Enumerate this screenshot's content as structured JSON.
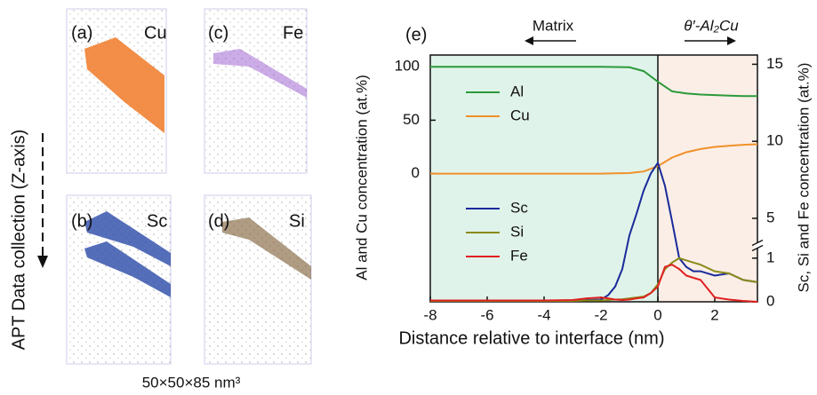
{
  "apt": {
    "axis_label": "APT Data collection (Z-axis)",
    "size_label": "50×50×85 nm³",
    "panels": [
      {
        "label": "(a)",
        "element": "Cu",
        "color": "#f07a28"
      },
      {
        "label": "(b)",
        "element": "Sc",
        "color": "#2a4aa8"
      },
      {
        "label": "(c)",
        "element": "Fe",
        "color": "#9a5ad0"
      },
      {
        "label": "(d)",
        "element": "Si",
        "color": "#7a5a30"
      }
    ]
  },
  "chart_data": {
    "type": "line",
    "panel_label": "(e)",
    "xlabel": "Distance relative to interface (nm)",
    "ylabel": "Al and Cu concentration (at.%)",
    "y2label": "Sc, Si and Fe concentration (at.%)",
    "xlim": [
      -8,
      3.5
    ],
    "xticks": [
      -8,
      -6,
      -4,
      -2,
      0,
      2
    ],
    "ylim": [
      -120,
      111
    ],
    "yticks": [
      0,
      50,
      100
    ],
    "y2lim": [
      0,
      15.6
    ],
    "y2_break": [
      1.2,
      3.5
    ],
    "y2ticks": [
      0,
      1,
      5,
      10,
      15
    ],
    "regions": [
      {
        "name": "Matrix",
        "xlim": [
          -8,
          0
        ],
        "color": "#e0f3ea"
      },
      {
        "name": "θ′-Al₂Cu",
        "xlim": [
          0,
          3.5
        ],
        "color": "#fbeee6"
      }
    ],
    "series": [
      {
        "name": "Al",
        "color": "#2a9a3a",
        "x": [
          -8,
          -7.5,
          -7,
          -6.5,
          -6,
          -5.5,
          -5,
          -4.5,
          -4,
          -3.5,
          -3,
          -2.5,
          -2,
          -1.5,
          -1,
          -0.5,
          0,
          0.5,
          1,
          1.5,
          2,
          2.5,
          3,
          3.5
        ],
        "values": [
          100,
          100,
          100,
          100,
          100,
          100,
          100,
          100,
          100,
          100,
          100,
          100,
          100,
          99.8,
          99.5,
          96,
          86,
          77,
          75,
          74,
          73.5,
          73,
          72.5,
          72.5
        ]
      },
      {
        "name": "Cu",
        "color": "#f0902a",
        "x": [
          -8,
          -7.5,
          -7,
          -6.5,
          -6,
          -5.5,
          -5,
          -4.5,
          -4,
          -3.5,
          -3,
          -2.5,
          -2,
          -1.5,
          -1,
          -0.5,
          0,
          0.5,
          1,
          1.5,
          2,
          2.5,
          3,
          3.5
        ],
        "values": [
          0,
          0,
          0,
          0,
          0,
          0,
          0,
          0,
          0,
          0,
          0,
          0,
          0,
          0.2,
          0.5,
          2,
          7,
          15,
          20,
          23,
          25,
          26,
          27,
          27.5
        ]
      },
      {
        "name": "Sc",
        "color": "#1a2a9a",
        "axis": "y2",
        "x": [
          -8,
          -6,
          -4,
          -3,
          -2.5,
          -2,
          -1.75,
          -1.5,
          -1.25,
          -1,
          -0.75,
          -0.5,
          -0.25,
          0,
          0.25,
          0.5,
          0.75,
          1,
          1.25,
          1.5,
          2,
          2.5,
          3,
          3.5
        ],
        "values": [
          0.02,
          0.02,
          0.03,
          0.03,
          0.04,
          0.05,
          0.15,
          0.35,
          0.75,
          3.9,
          5.3,
          6.8,
          7.9,
          8.6,
          7.1,
          4.8,
          1,
          0.8,
          0.7,
          0.7,
          0.6,
          0.65,
          0.5,
          0.45
        ]
      },
      {
        "name": "Si",
        "color": "#8a8a1a",
        "axis": "y2",
        "x": [
          -8,
          -6,
          -4,
          -3,
          -2.5,
          -2,
          -1.75,
          -1.5,
          -1.25,
          -1,
          -0.75,
          -0.5,
          -0.25,
          0,
          0.25,
          0.5,
          0.75,
          1,
          1.25,
          1.5,
          2,
          2.5,
          3,
          3.5
        ],
        "values": [
          0.02,
          0.02,
          0.02,
          0.02,
          0.03,
          0.03,
          0.04,
          0.05,
          0.06,
          0.08,
          0.1,
          0.12,
          0.2,
          0.4,
          0.75,
          0.9,
          1,
          0.95,
          0.9,
          0.85,
          0.7,
          0.65,
          0.5,
          0.45
        ]
      },
      {
        "name": "Fe",
        "color": "#e02020",
        "axis": "y2",
        "x": [
          -8,
          -6,
          -4,
          -3,
          -2.5,
          -2,
          -1.75,
          -1.5,
          -1.25,
          -1,
          -0.75,
          -0.5,
          -0.25,
          0,
          0.25,
          0.5,
          0.75,
          1,
          1.25,
          1.5,
          2,
          2.5,
          3,
          3.5
        ],
        "values": [
          0.03,
          0.03,
          0.03,
          0.04,
          0.08,
          0.1,
          0.08,
          0.05,
          0.04,
          0.05,
          0.08,
          0.1,
          0.2,
          0.35,
          0.8,
          0.85,
          0.75,
          0.6,
          0.55,
          0.5,
          0.1,
          0.05,
          0.02,
          0
        ]
      }
    ]
  }
}
